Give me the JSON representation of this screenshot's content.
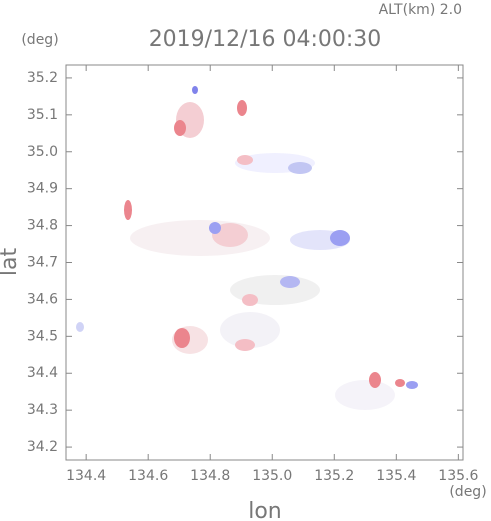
{
  "chart_data": {
    "type": "map",
    "title": "2019/12/16 04:00:30",
    "annotation": "ALT(km) 2.0",
    "y_unit": "(deg)",
    "x_unit": "(deg)",
    "xlabel": "lon",
    "ylabel": "lat",
    "xlim": [
      134.335,
      135.615
    ],
    "ylim": [
      34.165,
      35.235
    ],
    "xticks": [
      134.4,
      134.6,
      134.8,
      {
        "value": 135,
        "label": "135.0"
      },
      135.2,
      135.4,
      135.6
    ],
    "yticks": [
      34.2,
      34.3,
      34.4,
      34.5,
      34.6,
      34.7,
      34.8,
      34.9,
      {
        "value": 35,
        "label": "35.0"
      },
      35.1,
      35.2
    ]
  }
}
